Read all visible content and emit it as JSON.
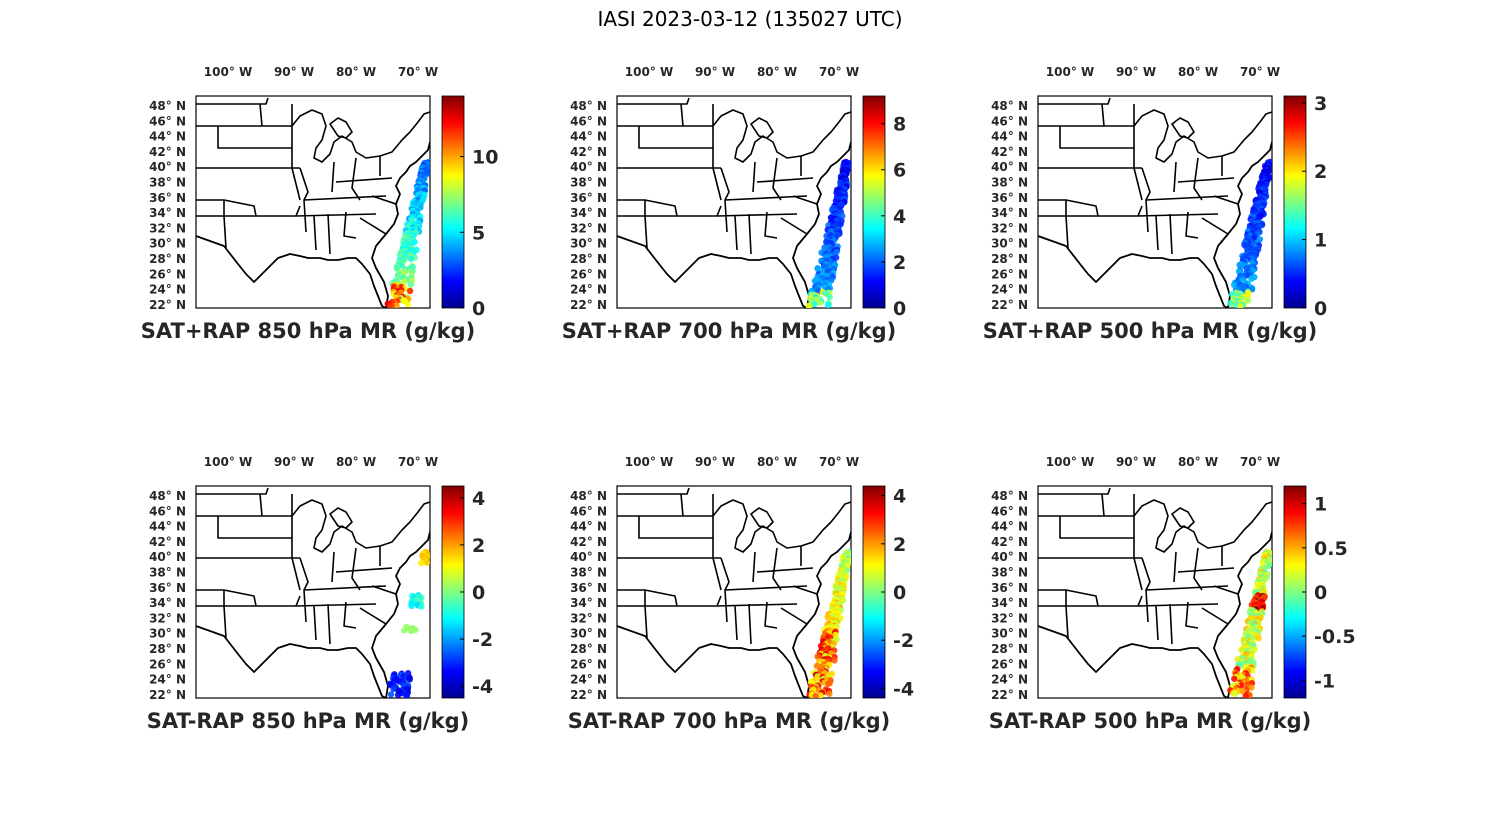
{
  "title": "IASI 2023-03-12 (135027 UTC)",
  "lon_labels": [
    "100",
    "90",
    "80",
    "70"
  ],
  "lon_suffix": "W",
  "lat_labels": [
    "48",
    "46",
    "44",
    "42",
    "40",
    "38",
    "36",
    "34",
    "32",
    "30",
    "28",
    "26",
    "24",
    "22"
  ],
  "lat_suffix": "N",
  "degree_symbol": "°",
  "colormap": "jet",
  "panels": [
    {
      "id": "sat-plus-rap-850",
      "title": "SAT+RAP 850 hPa MR (g/kg)",
      "clim": [
        0,
        14
      ],
      "ticks": [
        0,
        5,
        10
      ],
      "tick_labels": [
        "0",
        "5",
        "10"
      ],
      "swath": "moist-low"
    },
    {
      "id": "sat-plus-rap-700",
      "title": "SAT+RAP 700 hPa MR (g/kg)",
      "clim": [
        0,
        9.2
      ],
      "ticks": [
        0,
        2,
        4,
        6,
        8
      ],
      "tick_labels": [
        "0",
        "2",
        "4",
        "6",
        "8"
      ],
      "swath": "dry"
    },
    {
      "id": "sat-plus-rap-500",
      "title": "SAT+RAP 500 hPa MR (g/kg)",
      "clim": [
        0,
        3.1
      ],
      "ticks": [
        0,
        1,
        2,
        3
      ],
      "tick_labels": [
        "0",
        "1",
        "2",
        "3"
      ],
      "swath": "dry"
    },
    {
      "id": "sat-minus-rap-850",
      "title": "SAT-RAP 850 hPa MR (g/kg)",
      "clim": [
        -4.5,
        4.5
      ],
      "ticks": [
        -4,
        -2,
        0,
        2,
        4
      ],
      "tick_labels": [
        "-4",
        "-2",
        "0",
        "2",
        "4"
      ],
      "swath": "sparse"
    },
    {
      "id": "sat-minus-rap-700",
      "title": "SAT-RAP 700 hPa MR (g/kg)",
      "clim": [
        -4.4,
        4.4
      ],
      "ticks": [
        -4,
        -2,
        0,
        2,
        4
      ],
      "tick_labels": [
        "-4",
        "-2",
        "0",
        "2",
        "4"
      ],
      "swath": "warm-south"
    },
    {
      "id": "sat-minus-rap-500",
      "title": "SAT-RAP 500 hPa MR (g/kg)",
      "clim": [
        -1.2,
        1.2
      ],
      "ticks": [
        -1,
        -0.5,
        0,
        0.5,
        1
      ],
      "tick_labels": [
        "-1",
        "-0.5",
        "0",
        "0.5",
        "1"
      ],
      "swath": "mixed"
    }
  ]
}
